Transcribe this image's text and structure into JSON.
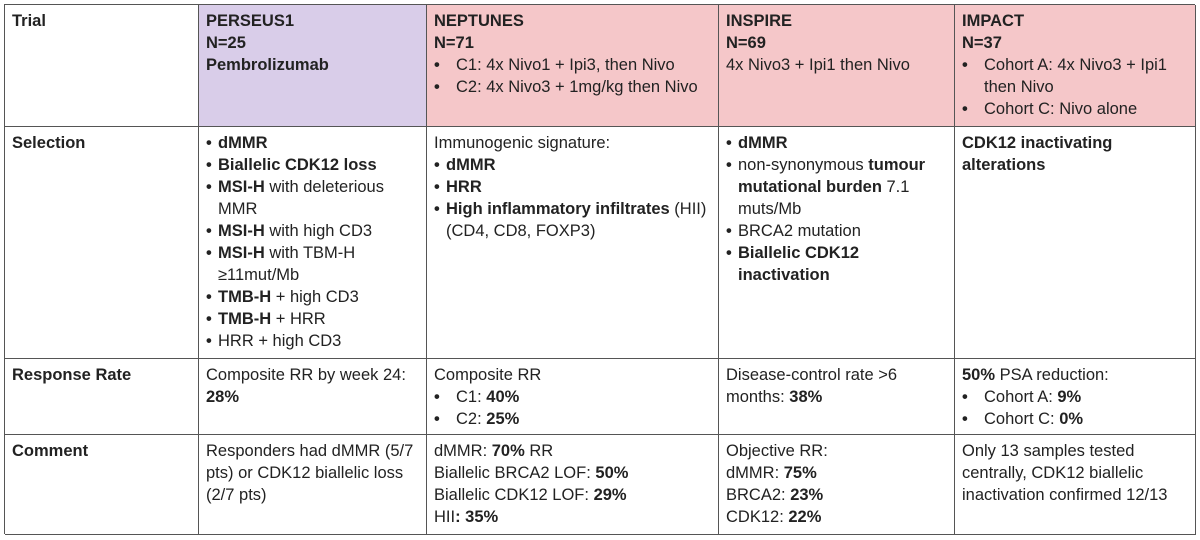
{
  "header": {
    "trial": "Trial",
    "perseus": {
      "name": "PERSEUS1",
      "n": "N=25",
      "drug": "Pembrolizumab"
    },
    "neptunes": {
      "name": "NEPTUNES",
      "n": "N=71",
      "items": [
        "C1: 4x Nivo1 + Ipi3, then Nivo",
        "C2: 4x Nivo3 + 1mg/kg then Nivo"
      ]
    },
    "inspire": {
      "name": "INSPIRE",
      "n": "N=69",
      "regimen": "4x Nivo3 + Ipi1 then Nivo"
    },
    "impact": {
      "name": "IMPACT",
      "n": "N=37",
      "items": [
        "Cohort A: 4x Nivo3 + Ipi1 then Nivo",
        "Cohort C: Nivo alone"
      ]
    }
  },
  "selection": {
    "label": "Selection",
    "perseus": [
      {
        "b": "dMMR",
        "t": ""
      },
      {
        "b": "Biallelic CDK12 loss",
        "t": ""
      },
      {
        "b": "MSI-H",
        "t": " with deleterious MMR"
      },
      {
        "b": "MSI-H",
        "t": " with high CD3"
      },
      {
        "b": "MSI-H",
        "t": " with TBM-H ≥11mut/Mb"
      },
      {
        "b": "TMB-H",
        "t": " + high CD3"
      },
      {
        "b": "TMB-H",
        "t": " + HRR"
      },
      {
        "b": "",
        "t": "HRR + high CD3"
      }
    ],
    "neptunes_intro": "Immunogenic signature:",
    "neptunes": [
      {
        "b": "dMMR",
        "t": ""
      },
      {
        "b": "HRR",
        "t": ""
      },
      {
        "b": "High inflammatory infiltrates",
        "t": " (HII) (CD4, CD8, FOXP3)"
      }
    ],
    "inspire": [
      {
        "b": "dMMR",
        "t": "",
        "after": ""
      },
      {
        "b": "",
        "t": "non-synonymous ",
        "b2": "tumour mutational burden",
        "after": " 7.1 muts/Mb"
      },
      {
        "b": "",
        "t": "BRCA2 mutation",
        "after": ""
      },
      {
        "b": "Biallelic CDK12 inactivation",
        "t": "",
        "after": ""
      }
    ],
    "impact": "CDK12 inactivating alterations"
  },
  "response": {
    "label": "Response Rate",
    "perseus_text": "Composite RR by week 24: ",
    "perseus_value": "28%",
    "neptunes_intro": "Composite RR",
    "neptunes": [
      {
        "t": "C1: ",
        "b": "40%"
      },
      {
        "t": "C2: ",
        "b": "25%"
      }
    ],
    "inspire_text": "Disease-control rate >6 months: ",
    "inspire_value": "38%",
    "impact_value": "50%",
    "impact_text": " PSA reduction:",
    "impact": [
      {
        "t": "Cohort A: ",
        "b": "9%"
      },
      {
        "t": "Cohort C: ",
        "b": "0%"
      }
    ]
  },
  "comment": {
    "label": "Comment",
    "perseus": "Responders had dMMR (5/7 pts) or CDK12 biallelic loss (2/7 pts)",
    "neptunes": [
      {
        "t": "dMMR: ",
        "b": "70%",
        "after": " RR"
      },
      {
        "t": "Biallelic BRCA2 LOF: ",
        "b": "50%",
        "after": ""
      },
      {
        "t": "Biallelic CDK12 LOF: ",
        "b": "29%",
        "after": ""
      },
      {
        "t": "HII",
        "b": ": 35%",
        "after": ""
      }
    ],
    "inspire_intro": "Objective RR:",
    "inspire": [
      {
        "t": "dMMR: ",
        "b": "75%"
      },
      {
        "t": "BRCA2: ",
        "b": "23%"
      },
      {
        "t": "CDK12: ",
        "b": "22%"
      }
    ],
    "impact": "Only 13 samples tested centrally, CDK12 biallelic inactivation confirmed 12/13"
  }
}
